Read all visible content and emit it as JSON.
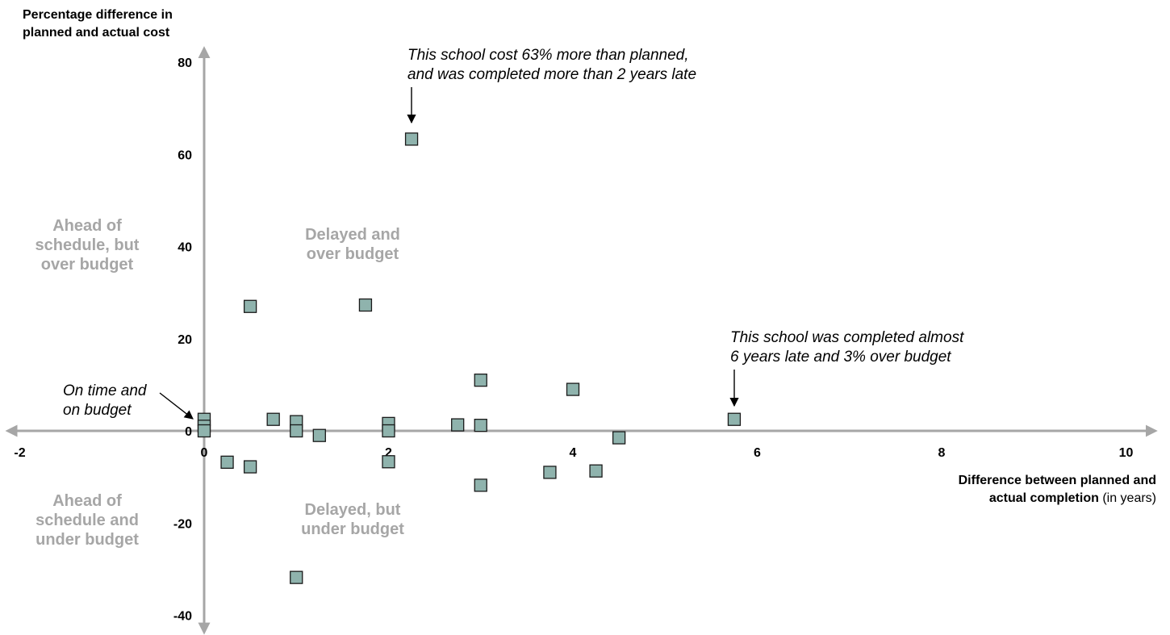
{
  "chart_data": {
    "type": "scatter",
    "y_title_lines": [
      "Percentage difference in",
      "planned and actual cost"
    ],
    "x_title_bold_lines": [
      "Difference between planned and",
      "actual completion"
    ],
    "x_title_suffix": "(in years)",
    "xlim": [
      -2,
      10.3
    ],
    "ylim": [
      -43,
      84
    ],
    "x_ticks": [
      -2,
      0,
      2,
      4,
      6,
      8,
      10
    ],
    "y_ticks": [
      -40,
      -20,
      0,
      20,
      40,
      60,
      80
    ],
    "grid": false,
    "points": [
      {
        "x": 0,
        "y": 2.5
      },
      {
        "x": 0,
        "y": 1
      },
      {
        "x": 0,
        "y": 0
      },
      {
        "x": 0.25,
        "y": -6.8
      },
      {
        "x": 0.5,
        "y": 27
      },
      {
        "x": 0.5,
        "y": -7.8
      },
      {
        "x": 0.75,
        "y": 2.5
      },
      {
        "x": 1,
        "y": 2
      },
      {
        "x": 1,
        "y": 0
      },
      {
        "x": 1,
        "y": -31.8
      },
      {
        "x": 1.25,
        "y": -1
      },
      {
        "x": 1.75,
        "y": 27.3
      },
      {
        "x": 2,
        "y": 1.6
      },
      {
        "x": 2,
        "y": 0
      },
      {
        "x": 2,
        "y": -6.7
      },
      {
        "x": 2.25,
        "y": 63.3
      },
      {
        "x": 2.75,
        "y": 1.3
      },
      {
        "x": 3,
        "y": 11
      },
      {
        "x": 3,
        "y": 1.2
      },
      {
        "x": 3,
        "y": -11.8
      },
      {
        "x": 3.75,
        "y": -9
      },
      {
        "x": 4,
        "y": 9
      },
      {
        "x": 4.25,
        "y": -8.7
      },
      {
        "x": 4.5,
        "y": -1.5
      },
      {
        "x": 5.75,
        "y": 2.5
      }
    ],
    "quadrant_labels": [
      {
        "id": "ahead-over",
        "lines": [
          "Ahead of",
          "schedule, but",
          "over budget"
        ]
      },
      {
        "id": "delayed-over",
        "lines": [
          "Delayed and",
          "over budget"
        ]
      },
      {
        "id": "ahead-under",
        "lines": [
          "Ahead of",
          "schedule and",
          "under budget"
        ]
      },
      {
        "id": "delayed-under",
        "lines": [
          "Delayed, but",
          "under budget"
        ]
      }
    ],
    "annotations": [
      {
        "id": "cost-63",
        "lines": [
          "This school cost 63% more than planned,",
          "and was completed more than 2 years late"
        ],
        "target": {
          "x": 2.25,
          "y": 63.3
        }
      },
      {
        "id": "late-6",
        "lines": [
          "This school was completed almost",
          "6 years late and 3% over budget"
        ],
        "target": {
          "x": 5.75,
          "y": 2.5
        }
      },
      {
        "id": "on-time",
        "lines": [
          "On time and",
          "on budget"
        ],
        "target": {
          "x": 0,
          "y": 2.5
        }
      }
    ],
    "colors": {
      "marker_fill": "#8fb3ad",
      "marker_stroke": "#1a1a1a",
      "axis": "#a6a6a6",
      "quadrant_text": "#a6a6a6"
    }
  }
}
